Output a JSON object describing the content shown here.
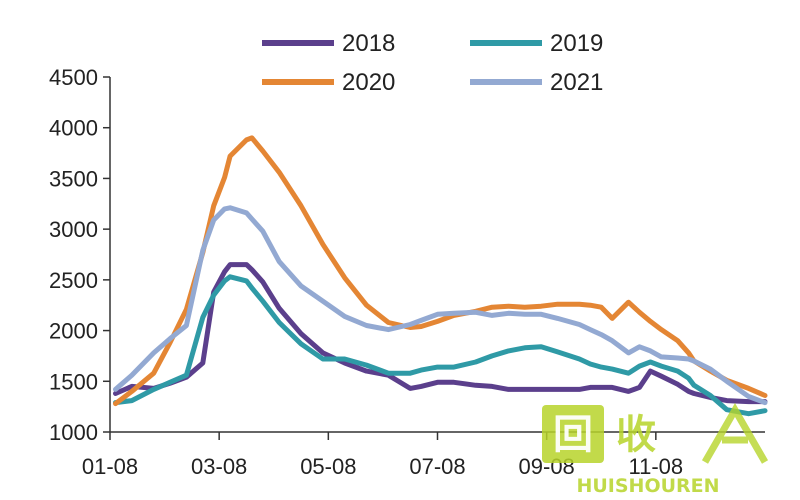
{
  "chart_data": {
    "type": "line",
    "title": "",
    "xlabel": "",
    "ylabel": "",
    "ylim": [
      1000,
      4500
    ],
    "yticks": [
      1000,
      1500,
      2000,
      2500,
      3000,
      3500,
      4000,
      4500
    ],
    "xticks": [
      "01-08",
      "03-08",
      "05-08",
      "07-08",
      "09-08",
      "11-08"
    ],
    "grid": false,
    "legend_position": "top",
    "series": [
      {
        "name": "2018",
        "color": "#5b3f8c",
        "x": [
          1,
          4,
          8,
          11,
          14,
          17,
          19,
          21,
          22,
          25,
          26,
          28,
          31,
          35,
          39,
          43,
          47,
          51,
          55,
          57,
          60,
          63,
          67,
          70,
          73,
          76,
          79,
          82,
          86,
          88,
          90,
          92,
          95,
          97,
          99,
          101,
          104,
          106,
          107,
          110,
          113,
          117,
          120
        ],
        "values": [
          1380,
          1450,
          1430,
          1480,
          1540,
          1680,
          2380,
          2580,
          2650,
          2650,
          2600,
          2480,
          2220,
          1970,
          1780,
          1680,
          1600,
          1560,
          1430,
          1450,
          1490,
          1490,
          1460,
          1450,
          1420,
          1420,
          1420,
          1420,
          1420,
          1440,
          1440,
          1440,
          1400,
          1440,
          1600,
          1550,
          1470,
          1400,
          1380,
          1340,
          1310,
          1300,
          1300
        ]
      },
      {
        "name": "2019",
        "color": "#2f9aa6",
        "x": [
          1,
          4,
          8,
          11,
          14,
          17,
          19,
          21,
          22,
          25,
          26,
          28,
          31,
          35,
          39,
          43,
          47,
          51,
          55,
          57,
          60,
          63,
          67,
          70,
          73,
          76,
          79,
          82,
          86,
          88,
          90,
          92,
          95,
          97,
          99,
          101,
          104,
          106,
          107,
          110,
          113,
          117,
          120
        ],
        "values": [
          1290,
          1310,
          1420,
          1490,
          1560,
          2130,
          2350,
          2490,
          2530,
          2490,
          2420,
          2290,
          2080,
          1870,
          1720,
          1720,
          1660,
          1580,
          1580,
          1610,
          1640,
          1640,
          1690,
          1750,
          1800,
          1830,
          1840,
          1790,
          1720,
          1670,
          1640,
          1620,
          1580,
          1650,
          1690,
          1650,
          1600,
          1530,
          1460,
          1360,
          1220,
          1180,
          1210
        ]
      },
      {
        "name": "2020",
        "color": "#e48634",
        "x": [
          1,
          4,
          8,
          11,
          14,
          17,
          19,
          21,
          22,
          25,
          26,
          28,
          31,
          35,
          39,
          43,
          47,
          51,
          55,
          57,
          60,
          63,
          67,
          70,
          73,
          76,
          79,
          82,
          86,
          88,
          90,
          92,
          95,
          97,
          99,
          101,
          104,
          106,
          107,
          110,
          113,
          117,
          120
        ],
        "values": [
          1280,
          1400,
          1580,
          1880,
          2210,
          2770,
          3230,
          3510,
          3720,
          3880,
          3900,
          3770,
          3560,
          3230,
          2850,
          2520,
          2250,
          2080,
          2030,
          2040,
          2090,
          2150,
          2190,
          2230,
          2240,
          2230,
          2240,
          2260,
          2260,
          2250,
          2230,
          2120,
          2280,
          2180,
          2090,
          2010,
          1900,
          1780,
          1700,
          1600,
          1510,
          1430,
          1360
        ]
      },
      {
        "name": "2021",
        "color": "#93a9d2",
        "x": [
          1,
          4,
          8,
          11,
          14,
          17,
          19,
          21,
          22,
          25,
          26,
          28,
          31,
          35,
          39,
          43,
          47,
          51,
          55,
          57,
          60,
          63,
          67,
          70,
          73,
          76,
          79,
          82,
          86,
          88,
          90,
          92,
          95,
          97,
          99,
          101,
          104,
          106,
          107,
          110,
          113,
          117,
          120
        ],
        "values": [
          1420,
          1560,
          1780,
          1920,
          2050,
          2790,
          3090,
          3200,
          3210,
          3160,
          3100,
          2980,
          2680,
          2440,
          2290,
          2140,
          2050,
          2010,
          2060,
          2100,
          2160,
          2170,
          2180,
          2150,
          2170,
          2160,
          2160,
          2120,
          2060,
          2010,
          1960,
          1900,
          1780,
          1840,
          1800,
          1740,
          1730,
          1720,
          1700,
          1620,
          1500,
          1350,
          1290
        ]
      }
    ],
    "x_domain": [
      0,
      120
    ]
  },
  "watermark": {
    "logo_text": "回收",
    "brand_text": "HUISHOUREN",
    "color": "#b7d42a"
  }
}
